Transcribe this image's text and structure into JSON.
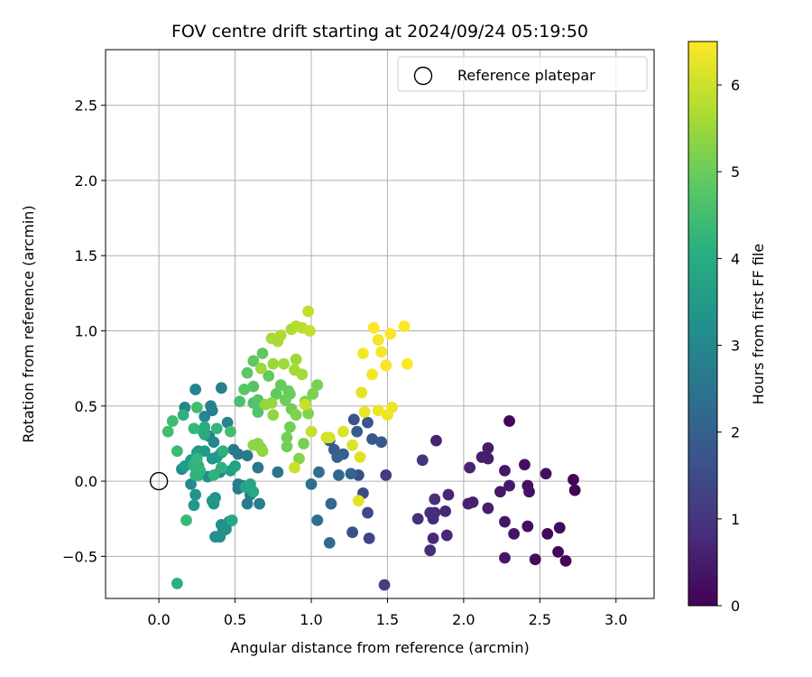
{
  "chart_data": {
    "type": "scatter",
    "title": "FOV centre drift starting at 2024/09/24 05:19:50",
    "xlabel": "Angular distance from reference (arcmin)",
    "ylabel": "Rotation from reference (arcmin)",
    "xlim": [
      -0.35,
      3.25
    ],
    "ylim": [
      -0.78,
      2.87
    ],
    "xticks": [
      0.0,
      0.5,
      1.0,
      1.5,
      2.0,
      2.5,
      3.0
    ],
    "xtick_labels": [
      "0.0",
      "0.5",
      "1.0",
      "1.5",
      "2.0",
      "2.5",
      "3.0"
    ],
    "yticks": [
      -0.5,
      0.0,
      0.5,
      1.0,
      1.5,
      2.0,
      2.5
    ],
    "ytick_labels": [
      "−0.5",
      "0.0",
      "0.5",
      "1.0",
      "1.5",
      "2.0",
      "2.5"
    ],
    "grid": true,
    "legend": {
      "position": "top-right",
      "entries": [
        "Reference platepar"
      ]
    },
    "reference_point": {
      "x": 0.0,
      "y": 0.0
    },
    "colorbar": {
      "label": "Hours from first FF file",
      "range": [
        0,
        6.5
      ],
      "ticks": [
        0,
        1,
        2,
        3,
        4,
        5,
        6
      ],
      "tick_labels": [
        "0",
        "1",
        "2",
        "3",
        "4",
        "5",
        "6"
      ],
      "colormap": "viridis"
    },
    "points": [
      {
        "x": 2.3,
        "y": 0.4,
        "h": 0.1
      },
      {
        "x": 2.72,
        "y": 0.01,
        "h": 0.05
      },
      {
        "x": 2.73,
        "y": -0.06,
        "h": 0.05
      },
      {
        "x": 2.67,
        "y": -0.53,
        "h": 0.1
      },
      {
        "x": 2.62,
        "y": -0.47,
        "h": 0.1
      },
      {
        "x": 2.63,
        "y": -0.31,
        "h": 0.15
      },
      {
        "x": 2.55,
        "y": -0.35,
        "h": 0.15
      },
      {
        "x": 2.47,
        "y": -0.52,
        "h": 0.2
      },
      {
        "x": 2.42,
        "y": -0.3,
        "h": 0.2
      },
      {
        "x": 2.54,
        "y": 0.05,
        "h": 0.25
      },
      {
        "x": 2.4,
        "y": 0.11,
        "h": 0.25
      },
      {
        "x": 2.42,
        "y": -0.03,
        "h": 0.3
      },
      {
        "x": 2.43,
        "y": -0.07,
        "h": 0.3
      },
      {
        "x": 2.33,
        "y": -0.35,
        "h": 0.35
      },
      {
        "x": 2.27,
        "y": -0.27,
        "h": 0.35
      },
      {
        "x": 2.27,
        "y": -0.51,
        "h": 0.4
      },
      {
        "x": 2.27,
        "y": 0.07,
        "h": 0.4
      },
      {
        "x": 2.3,
        "y": -0.03,
        "h": 0.45
      },
      {
        "x": 2.24,
        "y": -0.07,
        "h": 0.45
      },
      {
        "x": 2.16,
        "y": 0.22,
        "h": 0.5
      },
      {
        "x": 2.16,
        "y": 0.15,
        "h": 0.5
      },
      {
        "x": 2.12,
        "y": 0.16,
        "h": 0.55
      },
      {
        "x": 2.16,
        "y": -0.18,
        "h": 0.55
      },
      {
        "x": 2.06,
        "y": -0.14,
        "h": 0.6
      },
      {
        "x": 2.03,
        "y": -0.15,
        "h": 0.6
      },
      {
        "x": 2.04,
        "y": 0.09,
        "h": 0.65
      },
      {
        "x": 1.82,
        "y": 0.27,
        "h": 0.65
      },
      {
        "x": 1.9,
        "y": -0.09,
        "h": 0.7
      },
      {
        "x": 1.88,
        "y": -0.2,
        "h": 0.7
      },
      {
        "x": 1.89,
        "y": -0.36,
        "h": 0.75
      },
      {
        "x": 1.8,
        "y": -0.38,
        "h": 0.75
      },
      {
        "x": 1.78,
        "y": -0.46,
        "h": 0.8
      },
      {
        "x": 1.8,
        "y": -0.25,
        "h": 0.8
      },
      {
        "x": 1.78,
        "y": -0.21,
        "h": 0.85
      },
      {
        "x": 1.81,
        "y": -0.21,
        "h": 0.85
      },
      {
        "x": 1.81,
        "y": -0.12,
        "h": 0.9
      },
      {
        "x": 1.7,
        "y": -0.25,
        "h": 0.9
      },
      {
        "x": 1.73,
        "y": 0.14,
        "h": 0.95
      },
      {
        "x": 1.49,
        "y": 0.04,
        "h": 1.1
      },
      {
        "x": 1.48,
        "y": -0.69,
        "h": 1.2
      },
      {
        "x": 1.38,
        "y": -0.38,
        "h": 1.3
      },
      {
        "x": 1.37,
        "y": -0.21,
        "h": 1.4
      },
      {
        "x": 1.34,
        "y": -0.08,
        "h": 1.5
      },
      {
        "x": 1.31,
        "y": 0.04,
        "h": 1.55
      },
      {
        "x": 1.27,
        "y": -0.34,
        "h": 1.6
      },
      {
        "x": 1.28,
        "y": 0.41,
        "h": 1.65
      },
      {
        "x": 1.37,
        "y": 0.39,
        "h": 1.7
      },
      {
        "x": 1.4,
        "y": 0.28,
        "h": 1.75
      },
      {
        "x": 1.46,
        "y": 0.26,
        "h": 1.8
      },
      {
        "x": 1.3,
        "y": 0.33,
        "h": 1.85
      },
      {
        "x": 1.12,
        "y": 0.27,
        "h": 1.9
      },
      {
        "x": 1.15,
        "y": 0.21,
        "h": 1.95
      },
      {
        "x": 1.17,
        "y": 0.16,
        "h": 2.0
      },
      {
        "x": 1.21,
        "y": 0.18,
        "h": 2.05
      },
      {
        "x": 1.26,
        "y": 0.05,
        "h": 2.1
      },
      {
        "x": 1.18,
        "y": 0.04,
        "h": 2.15
      },
      {
        "x": 1.13,
        "y": -0.15,
        "h": 2.2
      },
      {
        "x": 1.12,
        "y": -0.41,
        "h": 2.25
      },
      {
        "x": 1.04,
        "y": -0.26,
        "h": 2.3
      },
      {
        "x": 1.0,
        "y": -0.02,
        "h": 2.35
      },
      {
        "x": 1.05,
        "y": 0.06,
        "h": 2.4
      },
      {
        "x": 0.78,
        "y": 0.06,
        "h": 2.5
      },
      {
        "x": 0.65,
        "y": 0.09,
        "h": 2.55
      },
      {
        "x": 0.58,
        "y": 0.17,
        "h": 2.6
      },
      {
        "x": 0.52,
        "y": 0.18,
        "h": 2.6
      },
      {
        "x": 0.49,
        "y": 0.21,
        "h": 2.65
      },
      {
        "x": 0.55,
        "y": -0.03,
        "h": 2.65
      },
      {
        "x": 0.6,
        "y": -0.09,
        "h": 2.7
      },
      {
        "x": 0.58,
        "y": -0.15,
        "h": 2.7
      },
      {
        "x": 0.66,
        "y": -0.15,
        "h": 2.75
      },
      {
        "x": 0.52,
        "y": -0.05,
        "h": 2.75
      },
      {
        "x": 0.52,
        "y": -0.02,
        "h": 2.8
      },
      {
        "x": 0.41,
        "y": 0.62,
        "h": 2.8
      },
      {
        "x": 0.35,
        "y": 0.47,
        "h": 2.85
      },
      {
        "x": 0.34,
        "y": 0.5,
        "h": 2.85
      },
      {
        "x": 0.24,
        "y": 0.61,
        "h": 2.9
      },
      {
        "x": 0.17,
        "y": 0.49,
        "h": 2.95
      },
      {
        "x": 0.45,
        "y": 0.39,
        "h": 2.95
      },
      {
        "x": 0.3,
        "y": 0.43,
        "h": 3.0
      },
      {
        "x": 0.33,
        "y": 0.3,
        "h": 3.0
      },
      {
        "x": 0.36,
        "y": 0.26,
        "h": 3.05
      },
      {
        "x": 0.26,
        "y": 0.2,
        "h": 3.05
      },
      {
        "x": 0.15,
        "y": 0.08,
        "h": 3.1
      },
      {
        "x": 0.21,
        "y": -0.02,
        "h": 3.1
      },
      {
        "x": 0.32,
        "y": 0.03,
        "h": 3.15
      },
      {
        "x": 0.4,
        "y": 0.06,
        "h": 3.15
      },
      {
        "x": 0.41,
        "y": -0.29,
        "h": 3.2
      },
      {
        "x": 0.4,
        "y": -0.37,
        "h": 3.2
      },
      {
        "x": 0.37,
        "y": -0.37,
        "h": 3.25
      },
      {
        "x": 0.42,
        "y": -0.33,
        "h": 3.25
      },
      {
        "x": 0.44,
        "y": -0.32,
        "h": 3.3
      },
      {
        "x": 0.46,
        "y": -0.27,
        "h": 3.3
      },
      {
        "x": 0.37,
        "y": -0.11,
        "h": 3.35
      },
      {
        "x": 0.35,
        "y": -0.13,
        "h": 3.35
      },
      {
        "x": 0.36,
        "y": -0.15,
        "h": 3.4
      },
      {
        "x": 0.24,
        "y": -0.09,
        "h": 3.4
      },
      {
        "x": 0.23,
        "y": -0.16,
        "h": 3.45
      },
      {
        "x": 0.35,
        "y": 0.15,
        "h": 3.45
      },
      {
        "x": 0.38,
        "y": 0.16,
        "h": 3.5
      },
      {
        "x": 0.41,
        "y": 0.19,
        "h": 3.5
      },
      {
        "x": 0.3,
        "y": 0.2,
        "h": 3.55
      },
      {
        "x": 0.25,
        "y": 0.19,
        "h": 3.55
      },
      {
        "x": 0.21,
        "y": 0.14,
        "h": 3.6
      },
      {
        "x": 0.17,
        "y": 0.1,
        "h": 3.6
      },
      {
        "x": 0.24,
        "y": 0.09,
        "h": 3.65
      },
      {
        "x": 0.47,
        "y": 0.07,
        "h": 3.7
      },
      {
        "x": 0.5,
        "y": 0.1,
        "h": 3.75
      },
      {
        "x": 0.57,
        "y": -0.04,
        "h": 3.8
      },
      {
        "x": 0.6,
        "y": -0.02,
        "h": 3.85
      },
      {
        "x": 0.62,
        "y": -0.07,
        "h": 3.9
      },
      {
        "x": 0.48,
        "y": -0.26,
        "h": 3.9
      },
      {
        "x": 0.3,
        "y": 0.31,
        "h": 3.95
      },
      {
        "x": 0.3,
        "y": 0.36,
        "h": 3.95
      },
      {
        "x": 0.29,
        "y": 0.33,
        "h": 4.0
      },
      {
        "x": 0.26,
        "y": 0.04,
        "h": 4.0
      },
      {
        "x": 0.26,
        "y": 0.1,
        "h": 4.05
      },
      {
        "x": 0.16,
        "y": 0.44,
        "h": 4.1
      },
      {
        "x": 0.12,
        "y": -0.68,
        "h": 4.1
      },
      {
        "x": 0.36,
        "y": 0.04,
        "h": 4.15
      },
      {
        "x": 0.41,
        "y": 0.09,
        "h": 4.15
      },
      {
        "x": 0.42,
        "y": 0.2,
        "h": 4.2
      },
      {
        "x": 0.24,
        "y": 0.04,
        "h": 4.2
      },
      {
        "x": 0.27,
        "y": 0.07,
        "h": 4.25
      },
      {
        "x": 0.23,
        "y": 0.11,
        "h": 4.25
      },
      {
        "x": 0.25,
        "y": 0.15,
        "h": 4.3
      },
      {
        "x": 0.38,
        "y": 0.35,
        "h": 4.3
      },
      {
        "x": 0.23,
        "y": 0.35,
        "h": 4.35
      },
      {
        "x": 0.18,
        "y": -0.26,
        "h": 4.4
      },
      {
        "x": 0.12,
        "y": 0.2,
        "h": 4.4
      },
      {
        "x": 0.09,
        "y": 0.4,
        "h": 4.45
      },
      {
        "x": 0.06,
        "y": 0.33,
        "h": 4.5
      },
      {
        "x": 0.25,
        "y": 0.49,
        "h": 4.5
      },
      {
        "x": 0.47,
        "y": 0.33,
        "h": 4.55
      },
      {
        "x": 0.53,
        "y": 0.53,
        "h": 4.6
      },
      {
        "x": 0.62,
        "y": 0.52,
        "h": 4.65
      },
      {
        "x": 0.65,
        "y": 0.46,
        "h": 4.7
      },
      {
        "x": 0.65,
        "y": 0.54,
        "h": 4.75
      },
      {
        "x": 0.62,
        "y": 0.63,
        "h": 4.75
      },
      {
        "x": 0.56,
        "y": 0.61,
        "h": 4.8
      },
      {
        "x": 0.58,
        "y": 0.72,
        "h": 4.8
      },
      {
        "x": 0.62,
        "y": 0.8,
        "h": 4.85
      },
      {
        "x": 0.68,
        "y": 0.85,
        "h": 4.85
      },
      {
        "x": 0.72,
        "y": 0.7,
        "h": 4.9
      },
      {
        "x": 0.77,
        "y": 0.58,
        "h": 4.9
      },
      {
        "x": 0.8,
        "y": 0.64,
        "h": 4.95
      },
      {
        "x": 0.85,
        "y": 0.6,
        "h": 4.95
      },
      {
        "x": 0.86,
        "y": 0.58,
        "h": 5.0
      },
      {
        "x": 0.83,
        "y": 0.54,
        "h": 5.0
      },
      {
        "x": 0.87,
        "y": 0.48,
        "h": 5.05
      },
      {
        "x": 0.86,
        "y": 0.36,
        "h": 5.05
      },
      {
        "x": 0.84,
        "y": 0.29,
        "h": 5.1
      },
      {
        "x": 0.84,
        "y": 0.23,
        "h": 5.1
      },
      {
        "x": 0.95,
        "y": 0.25,
        "h": 5.15
      },
      {
        "x": 1.04,
        "y": 0.64,
        "h": 5.15
      },
      {
        "x": 1.01,
        "y": 0.58,
        "h": 5.2
      },
      {
        "x": 0.96,
        "y": 0.53,
        "h": 5.2
      },
      {
        "x": 0.98,
        "y": 0.45,
        "h": 5.25
      },
      {
        "x": 0.9,
        "y": 0.44,
        "h": 5.25
      },
      {
        "x": 0.92,
        "y": 0.15,
        "h": 5.3
      },
      {
        "x": 0.67,
        "y": 0.22,
        "h": 5.3
      },
      {
        "x": 0.62,
        "y": 0.24,
        "h": 5.35
      },
      {
        "x": 0.65,
        "y": 0.25,
        "h": 5.35
      },
      {
        "x": 0.68,
        "y": 0.2,
        "h": 5.4
      },
      {
        "x": 0.75,
        "y": 0.44,
        "h": 5.4
      },
      {
        "x": 0.7,
        "y": 0.51,
        "h": 5.45
      },
      {
        "x": 0.74,
        "y": 0.52,
        "h": 5.45
      },
      {
        "x": 0.67,
        "y": 0.75,
        "h": 5.5
      },
      {
        "x": 0.75,
        "y": 0.78,
        "h": 5.5
      },
      {
        "x": 0.82,
        "y": 0.78,
        "h": 5.55
      },
      {
        "x": 0.9,
        "y": 0.81,
        "h": 5.55
      },
      {
        "x": 0.89,
        "y": 0.74,
        "h": 5.6
      },
      {
        "x": 0.94,
        "y": 0.71,
        "h": 5.6
      },
      {
        "x": 0.74,
        "y": 0.95,
        "h": 5.65
      },
      {
        "x": 0.78,
        "y": 0.93,
        "h": 5.65
      },
      {
        "x": 0.8,
        "y": 0.97,
        "h": 5.7
      },
      {
        "x": 0.87,
        "y": 1.01,
        "h": 5.7
      },
      {
        "x": 0.9,
        "y": 1.03,
        "h": 5.75
      },
      {
        "x": 0.94,
        "y": 1.02,
        "h": 5.8
      },
      {
        "x": 0.98,
        "y": 1.13,
        "h": 5.85
      },
      {
        "x": 0.99,
        "y": 1.0,
        "h": 5.9
      },
      {
        "x": 1.0,
        "y": 0.33,
        "h": 5.95
      },
      {
        "x": 0.96,
        "y": 0.51,
        "h": 5.95
      },
      {
        "x": 0.89,
        "y": 0.09,
        "h": 6.0
      },
      {
        "x": 1.1,
        "y": 0.29,
        "h": 6.05
      },
      {
        "x": 1.12,
        "y": 0.29,
        "h": 6.1
      },
      {
        "x": 1.21,
        "y": 0.33,
        "h": 6.15
      },
      {
        "x": 1.27,
        "y": 0.24,
        "h": 6.2
      },
      {
        "x": 1.32,
        "y": 0.16,
        "h": 6.2
      },
      {
        "x": 1.31,
        "y": -0.13,
        "h": 6.25
      },
      {
        "x": 1.33,
        "y": 0.59,
        "h": 6.25
      },
      {
        "x": 1.35,
        "y": 0.46,
        "h": 6.3
      },
      {
        "x": 1.44,
        "y": 0.47,
        "h": 6.3
      },
      {
        "x": 1.5,
        "y": 0.44,
        "h": 6.35
      },
      {
        "x": 1.53,
        "y": 0.49,
        "h": 6.35
      },
      {
        "x": 1.4,
        "y": 0.71,
        "h": 6.4
      },
      {
        "x": 1.34,
        "y": 0.85,
        "h": 6.4
      },
      {
        "x": 1.44,
        "y": 0.94,
        "h": 6.4
      },
      {
        "x": 1.46,
        "y": 0.86,
        "h": 6.45
      },
      {
        "x": 1.49,
        "y": 0.77,
        "h": 6.45
      },
      {
        "x": 1.52,
        "y": 0.98,
        "h": 6.45
      },
      {
        "x": 1.41,
        "y": 1.02,
        "h": 6.5
      },
      {
        "x": 1.61,
        "y": 1.03,
        "h": 6.5
      },
      {
        "x": 1.63,
        "y": 0.78,
        "h": 6.5
      }
    ]
  }
}
